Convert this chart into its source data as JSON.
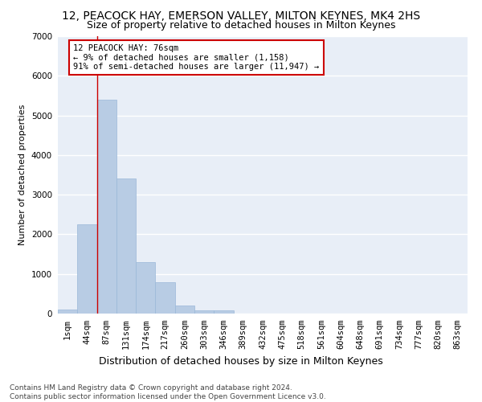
{
  "title1": "12, PEACOCK HAY, EMERSON VALLEY, MILTON KEYNES, MK4 2HS",
  "title2": "Size of property relative to detached houses in Milton Keynes",
  "xlabel": "Distribution of detached houses by size in Milton Keynes",
  "ylabel": "Number of detached properties",
  "categories": [
    "1sqm",
    "44sqm",
    "87sqm",
    "131sqm",
    "174sqm",
    "217sqm",
    "260sqm",
    "303sqm",
    "346sqm",
    "389sqm",
    "432sqm",
    "475sqm",
    "518sqm",
    "561sqm",
    "604sqm",
    "648sqm",
    "691sqm",
    "734sqm",
    "777sqm",
    "820sqm",
    "863sqm"
  ],
  "values": [
    100,
    2250,
    5400,
    3400,
    1300,
    800,
    200,
    80,
    80,
    0,
    0,
    0,
    0,
    0,
    0,
    0,
    0,
    0,
    0,
    0,
    0
  ],
  "bar_color": "#b8cce4",
  "bar_edge_color": "#9ab8d8",
  "bg_color": "#e8eef7",
  "grid_color": "#ffffff",
  "vline_x": 1.5,
  "vline_color": "#cc0000",
  "annotation_text": "12 PEACOCK HAY: 76sqm\n← 9% of detached houses are smaller (1,158)\n91% of semi-detached houses are larger (11,947) →",
  "annotation_box_color": "#ffffff",
  "annotation_box_edge": "#cc0000",
  "ylim": [
    0,
    7000
  ],
  "yticks": [
    0,
    1000,
    2000,
    3000,
    4000,
    5000,
    6000,
    7000
  ],
  "footer": "Contains HM Land Registry data © Crown copyright and database right 2024.\nContains public sector information licensed under the Open Government Licence v3.0.",
  "title1_fontsize": 10,
  "title2_fontsize": 9,
  "xlabel_fontsize": 9,
  "ylabel_fontsize": 8,
  "tick_fontsize": 7.5,
  "annotation_fontsize": 7.5,
  "footer_fontsize": 6.5
}
